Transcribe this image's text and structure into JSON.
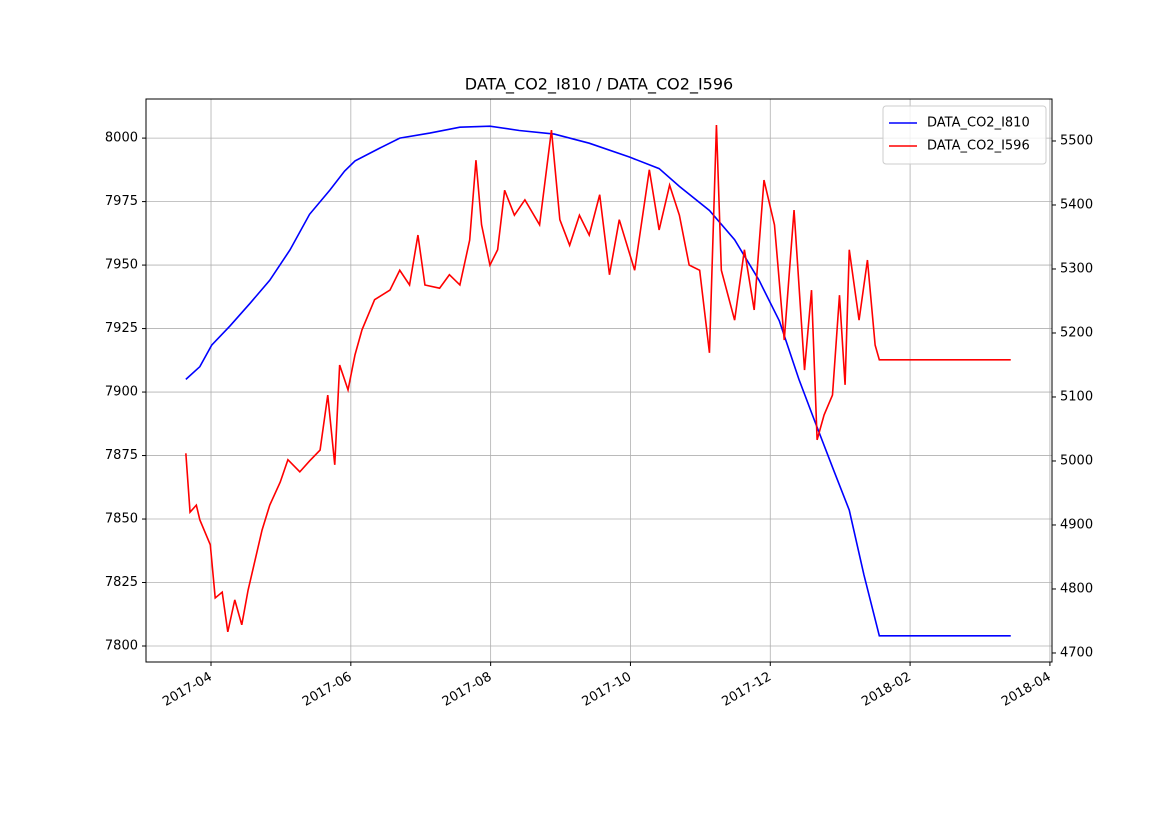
{
  "chart_data": {
    "type": "line",
    "title": "DATA_CO2_I810 / DATA_CO2_I596",
    "xlim": [
      2.07,
      15.03
    ],
    "xticks": [
      {
        "value": 3,
        "label": "2017-04"
      },
      {
        "value": 5,
        "label": "2017-06"
      },
      {
        "value": 7,
        "label": "2017-08"
      },
      {
        "value": 9,
        "label": "2017-10"
      },
      {
        "value": 11,
        "label": "2017-12"
      },
      {
        "value": 13,
        "label": "2018-02"
      },
      {
        "value": 15,
        "label": "2018-04"
      }
    ],
    "ylim": [
      7793.7,
      8015.4
    ],
    "yticks": [
      7800,
      7825,
      7850,
      7875,
      7900,
      7925,
      7950,
      7975,
      8000
    ],
    "y2lim": [
      4685.9,
      5565.6
    ],
    "y2ticks": [
      4700,
      4800,
      4900,
      5000,
      5100,
      5200,
      5300,
      5400,
      5500
    ],
    "grid": true,
    "legend": "upper right",
    "series": [
      {
        "name": "DATA_CO2_I810",
        "color": "#0000ff",
        "axis": "y",
        "x": [
          2.64,
          2.84,
          3.01,
          3.27,
          3.56,
          3.84,
          4.13,
          4.41,
          4.7,
          4.91,
          5.06,
          5.41,
          5.7,
          6.13,
          6.56,
          6.99,
          7.41,
          7.91,
          8.41,
          8.99,
          9.41,
          9.7,
          10.13,
          10.49,
          10.84,
          11.13,
          11.41,
          11.63,
          11.91,
          12.13,
          12.34,
          12.56,
          14.44
        ],
        "values": [
          7905,
          7910,
          7918.5,
          7926,
          7935,
          7944,
          7956,
          7970,
          7979.5,
          7987,
          7991,
          7996,
          8000,
          8002,
          8004.3,
          8004.7,
          8003,
          8001.6,
          7998,
          7992.5,
          7988,
          7981,
          7971.5,
          7960,
          7944,
          7928,
          7905,
          7889,
          7869,
          7853.5,
          7828,
          7804,
          7804
        ]
      },
      {
        "name": "DATA_CO2_I596",
        "color": "#ff0000",
        "axis": "y2",
        "x": [
          2.64,
          2.7,
          2.79,
          2.84,
          2.99,
          3.06,
          3.16,
          3.24,
          3.34,
          3.44,
          3.53,
          3.63,
          3.73,
          3.84,
          3.99,
          4.1,
          4.27,
          4.41,
          4.56,
          4.67,
          4.77,
          4.84,
          4.96,
          5.06,
          5.16,
          5.34,
          5.56,
          5.7,
          5.84,
          5.96,
          6.06,
          6.27,
          6.41,
          6.56,
          6.7,
          6.79,
          6.87,
          6.99,
          7.1,
          7.2,
          7.34,
          7.49,
          7.7,
          7.87,
          7.99,
          8.13,
          8.27,
          8.41,
          8.56,
          8.7,
          8.84,
          9.06,
          9.27,
          9.41,
          9.56,
          9.7,
          9.84,
          9.99,
          10.13,
          10.23,
          10.3,
          10.49,
          10.63,
          10.77,
          10.91,
          11.06,
          11.2,
          11.34,
          11.49,
          11.59,
          11.67,
          11.77,
          11.89,
          11.99,
          12.07,
          12.13,
          12.27,
          12.39,
          12.5,
          12.56,
          14.44
        ],
        "values": [
          5012,
          4920,
          4931,
          4908,
          4869,
          4786,
          4795,
          4733,
          4783,
          4744,
          4798,
          4845,
          4892,
          4931,
          4967,
          5002,
          4983,
          5000,
          5017,
          5103,
          4994,
          5150,
          5111,
          5166,
          5205,
          5252,
          5267,
          5298,
          5275,
          5353,
          5275,
          5270,
          5291,
          5275,
          5345,
          5470,
          5369,
          5306,
          5330,
          5423,
          5384,
          5408,
          5369,
          5517,
          5377,
          5337,
          5384,
          5353,
          5416,
          5291,
          5377,
          5298,
          5455,
          5361,
          5431,
          5384,
          5306,
          5298,
          5169,
          5525,
          5298,
          5220,
          5330,
          5236,
          5439,
          5369,
          5189,
          5392,
          5142,
          5267,
          5033,
          5072,
          5103,
          5259,
          5119,
          5330,
          5220,
          5314,
          5181,
          5158,
          5158
        ]
      }
    ]
  }
}
